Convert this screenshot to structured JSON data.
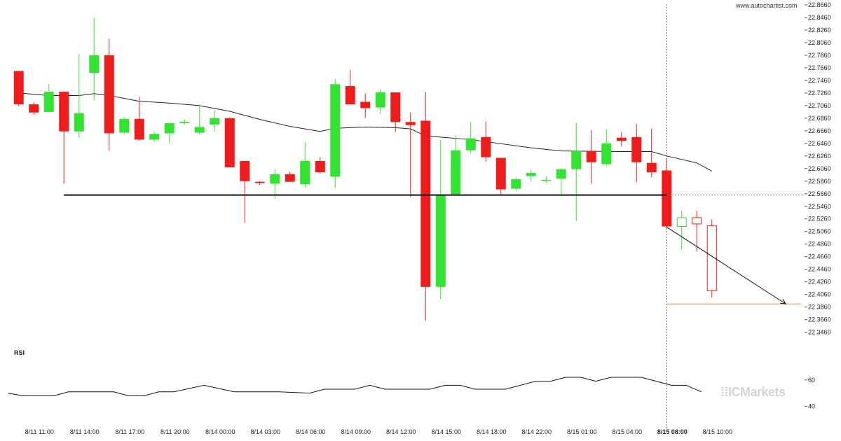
{
  "watermark": "www.autochartist.com",
  "brand": "ICMarkets",
  "rsi_label": "RSI",
  "colors": {
    "bull": "#32e332",
    "bear": "#f01c1c",
    "text": "#222222",
    "ma": "#222222",
    "target": "#e5894d"
  },
  "chart_data": {
    "type": "candlestick",
    "y_ticks": [
      "22.8660",
      "22.8460",
      "22.8260",
      "22.8060",
      "22.7860",
      "22.7660",
      "22.7460",
      "22.7260",
      "22.7060",
      "22.6860",
      "22.6660",
      "22.6460",
      "22.6260",
      "22.6060",
      "22.5860",
      "22.5660",
      "22.5460",
      "22.5260",
      "22.5060",
      "22.4860",
      "22.4660",
      "22.4460",
      "22.4260",
      "22.4060",
      "22.3860",
      "22.3660",
      "22.3460"
    ],
    "ylim": [
      22.34,
      22.866
    ],
    "x_ticks": [
      {
        "label": "8/11 11:00",
        "i": 1.5,
        "bold": false
      },
      {
        "label": "8/11 14:00",
        "i": 4.5,
        "bold": false
      },
      {
        "label": "8/11 17:00",
        "i": 7.5,
        "bold": false
      },
      {
        "label": "8/11 20:00",
        "i": 10.5,
        "bold": false
      },
      {
        "label": "8/14 00:00",
        "i": 13.5,
        "bold": false
      },
      {
        "label": "8/14 03:00",
        "i": 16.5,
        "bold": false
      },
      {
        "label": "8/14 06:00",
        "i": 19.5,
        "bold": false
      },
      {
        "label": "8/14 09:00",
        "i": 22.5,
        "bold": false
      },
      {
        "label": "8/14 12:00",
        "i": 25.5,
        "bold": false
      },
      {
        "label": "8/14 15:00",
        "i": 28.5,
        "bold": false
      },
      {
        "label": "8/14 18:00",
        "i": 31.5,
        "bold": false
      },
      {
        "label": "8/14 22:00",
        "i": 34.5,
        "bold": false
      },
      {
        "label": "8/15 01:00",
        "i": 37.5,
        "bold": false
      },
      {
        "label": "8/15 04:00",
        "i": 40.5,
        "bold": false
      },
      {
        "label": "8/15 08:00",
        "i": 43.5,
        "bold": true
      },
      {
        "label": "8/15 10:00",
        "i": 46.5,
        "bold": false
      }
    ],
    "candles": [
      [
        22.761,
        22.761,
        22.705,
        22.708
      ],
      [
        22.708,
        22.711,
        22.691,
        22.695
      ],
      [
        22.696,
        22.74,
        22.695,
        22.728
      ],
      [
        22.728,
        22.729,
        22.582,
        22.665
      ],
      [
        22.665,
        22.788,
        22.655,
        22.694
      ],
      [
        22.758,
        22.845,
        22.715,
        22.786
      ],
      [
        22.786,
        22.812,
        22.634,
        22.662
      ],
      [
        22.663,
        22.688,
        22.66,
        22.685
      ],
      [
        22.685,
        22.72,
        22.65,
        22.652
      ],
      [
        22.652,
        22.664,
        22.648,
        22.661
      ],
      [
        22.662,
        22.678,
        22.646,
        22.678
      ],
      [
        22.678,
        22.684,
        22.676,
        22.68
      ],
      [
        22.663,
        22.708,
        22.66,
        22.672
      ],
      [
        22.676,
        22.698,
        22.665,
        22.686
      ],
      [
        22.686,
        22.687,
        22.608,
        22.608
      ],
      [
        22.618,
        22.618,
        22.52,
        22.586
      ],
      [
        22.585,
        22.586,
        22.58,
        22.583
      ],
      [
        22.582,
        22.605,
        22.558,
        22.597
      ],
      [
        22.597,
        22.601,
        22.585,
        22.585
      ],
      [
        22.581,
        22.648,
        22.575,
        22.618
      ],
      [
        22.618,
        22.624,
        22.598,
        22.6
      ],
      [
        22.593,
        22.748,
        22.575,
        22.74
      ],
      [
        22.737,
        22.763,
        22.71,
        22.708
      ],
      [
        22.712,
        22.725,
        22.686,
        22.702
      ],
      [
        22.703,
        22.732,
        22.693,
        22.727
      ],
      [
        22.727,
        22.727,
        22.664,
        22.68
      ],
      [
        22.68,
        22.695,
        22.561,
        22.675
      ],
      [
        22.682,
        22.728,
        22.364,
        22.418
      ],
      [
        22.418,
        22.651,
        22.399,
        22.565
      ],
      [
        22.565,
        22.658,
        22.565,
        22.635
      ],
      [
        22.635,
        22.68,
        22.63,
        22.654
      ],
      [
        22.656,
        22.681,
        22.617,
        22.624
      ],
      [
        22.623,
        22.623,
        22.565,
        22.573
      ],
      [
        22.574,
        22.592,
        22.57,
        22.589
      ],
      [
        22.594,
        22.604,
        22.585,
        22.599
      ],
      [
        22.588,
        22.594,
        22.583,
        22.588
      ],
      [
        22.59,
        22.606,
        22.565,
        22.605
      ],
      [
        22.605,
        22.679,
        22.523,
        22.634
      ],
      [
        22.634,
        22.667,
        22.582,
        22.616
      ],
      [
        22.613,
        22.668,
        22.61,
        22.646
      ],
      [
        22.655,
        22.664,
        22.641,
        22.65
      ],
      [
        22.656,
        22.677,
        22.584,
        22.616
      ],
      [
        22.615,
        22.67,
        22.592,
        22.6
      ],
      [
        22.603,
        22.622,
        22.512,
        22.514
      ],
      [
        22.514,
        22.539,
        22.477,
        22.528
      ],
      [
        22.528,
        22.539,
        22.474,
        22.518
      ],
      [
        22.515,
        22.525,
        22.401,
        22.412
      ]
    ],
    "moving_average": [
      [
        0,
        22.726
      ],
      [
        2,
        22.722
      ],
      [
        4,
        22.722
      ],
      [
        5,
        22.725
      ],
      [
        6,
        22.722
      ],
      [
        8,
        22.713
      ],
      [
        10,
        22.71
      ],
      [
        12,
        22.706
      ],
      [
        14,
        22.697
      ],
      [
        16,
        22.684
      ],
      [
        18,
        22.673
      ],
      [
        20,
        22.665
      ],
      [
        21,
        22.67
      ],
      [
        23,
        22.672
      ],
      [
        25,
        22.671
      ],
      [
        26,
        22.669
      ],
      [
        27,
        22.658
      ],
      [
        30,
        22.652
      ],
      [
        34,
        22.639
      ],
      [
        36,
        22.634
      ],
      [
        40,
        22.633
      ],
      [
        42,
        22.633
      ],
      [
        43,
        22.626
      ],
      [
        45,
        22.615
      ],
      [
        46,
        22.602
      ]
    ],
    "support_line": {
      "value": 22.564,
      "from_index": 3,
      "to_index": 43.5
    },
    "forecast_arrow": {
      "from": [
        43.5,
        22.513
      ],
      "to": [
        51.4,
        22.391
      ]
    },
    "target_level": 22.391,
    "rsi": {
      "y_ticks": [
        "60",
        "40"
      ],
      "ylim": [
        35,
        80
      ],
      "values": [
        [
          0,
          50
        ],
        [
          1,
          48
        ],
        [
          3,
          48
        ],
        [
          4,
          51
        ],
        [
          7,
          51
        ],
        [
          8,
          48
        ],
        [
          9,
          48
        ],
        [
          10,
          51
        ],
        [
          11,
          51
        ],
        [
          13,
          56
        ],
        [
          15,
          51
        ],
        [
          18,
          51
        ],
        [
          20,
          50
        ],
        [
          21,
          53
        ],
        [
          23,
          53
        ],
        [
          24,
          56
        ],
        [
          25,
          53
        ],
        [
          28,
          53
        ],
        [
          29,
          56
        ],
        [
          30,
          56
        ],
        [
          31,
          53
        ],
        [
          33,
          53
        ],
        [
          35,
          59
        ],
        [
          36,
          59
        ],
        [
          37,
          62
        ],
        [
          38,
          62
        ],
        [
          39,
          59
        ],
        [
          40,
          62
        ],
        [
          42,
          62
        ],
        [
          43,
          59
        ],
        [
          44,
          56
        ],
        [
          45,
          56
        ],
        [
          46,
          51
        ]
      ]
    }
  }
}
